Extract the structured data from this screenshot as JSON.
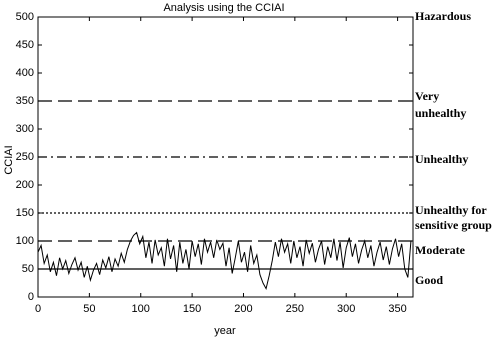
{
  "chart_data": {
    "type": "line",
    "title": "Analysis using the CCIAI",
    "x_label": "year",
    "y_label": "CCIAI",
    "x": [
      0,
      3,
      6,
      9,
      12,
      15,
      18,
      21,
      24,
      27,
      30,
      33,
      36,
      39,
      42,
      45,
      48,
      51,
      54,
      57,
      60,
      63,
      66,
      69,
      72,
      75,
      78,
      81,
      84,
      87,
      90,
      93,
      96,
      99,
      102,
      105,
      108,
      111,
      114,
      117,
      120,
      123,
      126,
      129,
      132,
      135,
      138,
      141,
      144,
      147,
      150,
      153,
      156,
      159,
      162,
      165,
      168,
      171,
      174,
      177,
      180,
      183,
      186,
      189,
      192,
      195,
      198,
      201,
      204,
      207,
      210,
      213,
      216,
      219,
      222,
      225,
      228,
      231,
      234,
      237,
      240,
      243,
      246,
      249,
      252,
      255,
      258,
      261,
      264,
      267,
      270,
      273,
      276,
      279,
      282,
      285,
      288,
      291,
      294,
      297,
      300,
      303,
      306,
      309,
      312,
      315,
      318,
      321,
      324,
      327,
      330,
      333,
      336,
      339,
      342,
      345,
      348,
      351,
      354,
      357,
      360,
      363
    ],
    "values": [
      80,
      92,
      60,
      75,
      45,
      62,
      38,
      70,
      50,
      65,
      42,
      58,
      70,
      48,
      62,
      35,
      55,
      30,
      48,
      60,
      40,
      66,
      52,
      72,
      45,
      68,
      55,
      78,
      62,
      85,
      100,
      110,
      115,
      95,
      108,
      70,
      98,
      60,
      102,
      75,
      88,
      55,
      104,
      68,
      92,
      45,
      98,
      60,
      85,
      50,
      100,
      72,
      95,
      58,
      104,
      80,
      98,
      70,
      102,
      85,
      96,
      55,
      88,
      42,
      70,
      100,
      62,
      80,
      45,
      92,
      60,
      75,
      40,
      25,
      15,
      38,
      65,
      98,
      72,
      104,
      80,
      95,
      60,
      100,
      70,
      90,
      55,
      102,
      78,
      96,
      62,
      85,
      100,
      58,
      90,
      70,
      104,
      65,
      98,
      52,
      88,
      106,
      72,
      95,
      60,
      84,
      100,
      70,
      92,
      55,
      80,
      98,
      66,
      90,
      58,
      86,
      104,
      72,
      95,
      50,
      35,
      100
    ],
    "color": "#000000",
    "xlim": [
      0,
      365
    ],
    "ylim": [
      0,
      500
    ],
    "xticks": [
      0,
      50,
      100,
      150,
      200,
      250,
      300,
      350
    ],
    "yticks": [
      0,
      50,
      100,
      150,
      200,
      250,
      300,
      350,
      400,
      450,
      500
    ],
    "reference_lines": [
      {
        "value": 50,
        "style": "solid"
      },
      {
        "value": 100,
        "style": "dashed"
      },
      {
        "value": 150,
        "style": "dotted"
      },
      {
        "value": 250,
        "style": "dashdot"
      },
      {
        "value": 350,
        "style": "dashed"
      }
    ],
    "category_labels": [
      [
        "Hazardous"
      ],
      [
        "Very",
        "unhealthy"
      ],
      [
        "Unhealthy"
      ],
      [
        "Unhealthy for",
        "sensitive group"
      ],
      [
        "Moderate"
      ],
      [
        "Good"
      ]
    ]
  }
}
